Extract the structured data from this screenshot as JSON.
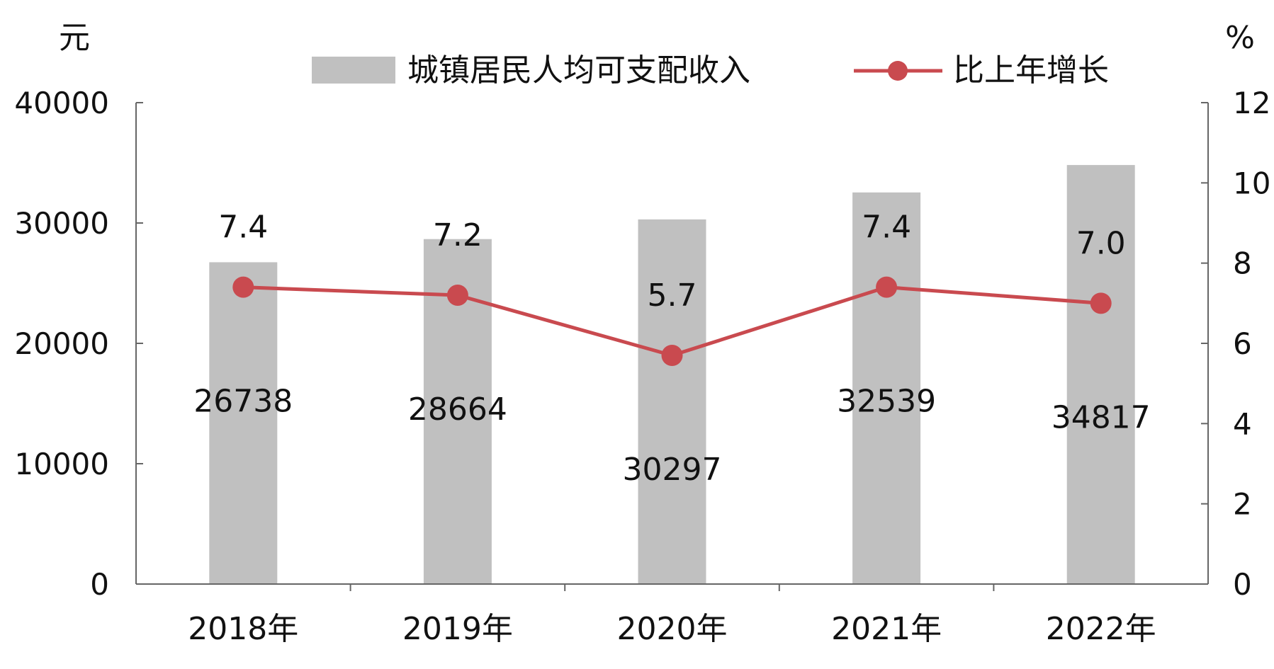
{
  "chart_data": {
    "type": "bar+line",
    "categories": [
      "2018年",
      "2019年",
      "2020年",
      "2021年",
      "2022年"
    ],
    "series": [
      {
        "name": "城镇居民人均可支配收入",
        "type": "bar",
        "axis": "left",
        "values": [
          26738,
          28664,
          30297,
          32539,
          34817
        ],
        "color": "#c0c0c0"
      },
      {
        "name": "比上年增长",
        "type": "line",
        "axis": "right",
        "values": [
          7.4,
          7.2,
          5.7,
          7.4,
          7.0
        ],
        "labels": [
          "7.4",
          "7.2",
          "5.7",
          "7.4",
          "7.0"
        ],
        "color": "#c94a4f"
      }
    ],
    "y_left": {
      "unit": "元",
      "min": 0,
      "max": 40000,
      "ticks": [
        "0",
        "10000",
        "20000",
        "30000",
        "40000"
      ]
    },
    "y_right": {
      "unit": "%",
      "min": 0,
      "max": 12,
      "ticks": [
        "0",
        "2",
        "4",
        "6",
        "8",
        "10",
        "12"
      ]
    },
    "legend_position": "top",
    "grid": false
  }
}
